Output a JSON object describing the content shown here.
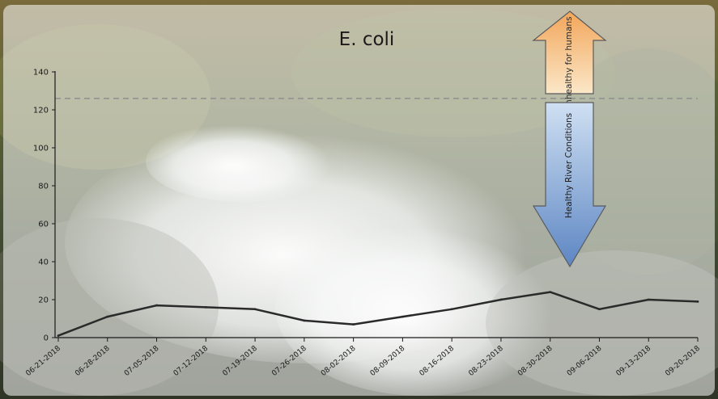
{
  "chart_data": {
    "type": "line",
    "title": "E. coli",
    "xlabel": "",
    "ylabel": "",
    "ylim": [
      0,
      140
    ],
    "yticks": [
      0,
      20,
      40,
      60,
      80,
      100,
      120,
      140
    ],
    "grid": false,
    "categories": [
      "06-21-2018",
      "06-28-2018",
      "07-05-2018",
      "07-12-2018",
      "07-19-2018",
      "07-26-2018",
      "08-02-2018",
      "08-09-2018",
      "08-16-2018",
      "08-23-2018",
      "08-30-2018",
      "09-06-2018",
      "09-13-2018",
      "09-20-2018"
    ],
    "series": [
      {
        "values": [
          1,
          11,
          17,
          16,
          15,
          9,
          7,
          11,
          15,
          20,
          24,
          15,
          20,
          19
        ]
      }
    ],
    "threshold": {
      "value": 126,
      "style": "dashed"
    },
    "annotations": {
      "unhealthy": "Unhealthy for humans",
      "healthy": "Healthy River Conditions"
    }
  },
  "colors": {
    "line": "#2a2a2a",
    "threshold": "#8f8f8f",
    "arrow_up_top": "#f2a65a",
    "arrow_up_bottom": "#fbe7c8",
    "arrow_down_top": "#cfe0f2",
    "arrow_down_bottom": "#5d86c3"
  }
}
